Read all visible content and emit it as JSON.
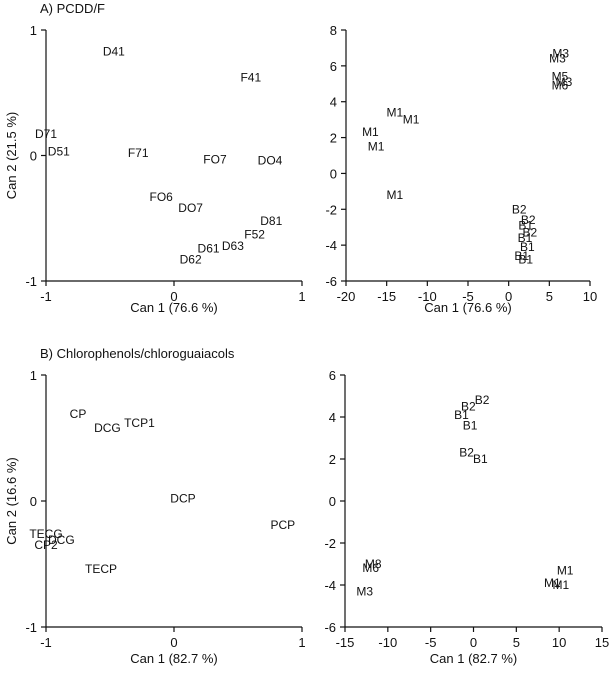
{
  "chart_data": [
    {
      "type": "scatter",
      "title": "A) PCDD/F",
      "xlabel": "Can 1 (76.6 %)",
      "ylabel": "Can 2 (21.5 %)",
      "xlim": [
        -1,
        1
      ],
      "ylim": [
        -1,
        1
      ],
      "xticks": [
        -1,
        0,
        1
      ],
      "yticks": [
        -1,
        0,
        1
      ],
      "tick_labels_x": [
        "-1",
        "0",
        "1"
      ],
      "tick_labels_y": [
        "-1",
        "0",
        "1"
      ],
      "grid": false,
      "points": [
        {
          "label": "D41",
          "x": -0.47,
          "y": 0.83
        },
        {
          "label": "F41",
          "x": 0.6,
          "y": 0.62
        },
        {
          "label": "D71",
          "x": -1.0,
          "y": 0.17
        },
        {
          "label": "D51",
          "x": -0.9,
          "y": 0.03
        },
        {
          "label": "F71",
          "x": -0.28,
          "y": 0.02
        },
        {
          "label": "FO7",
          "x": 0.32,
          "y": -0.03
        },
        {
          "label": "DO4",
          "x": 0.75,
          "y": -0.04
        },
        {
          "label": "FO6",
          "x": -0.1,
          "y": -0.33
        },
        {
          "label": "DO7",
          "x": 0.13,
          "y": -0.42
        },
        {
          "label": "D81",
          "x": 0.76,
          "y": -0.52
        },
        {
          "label": "F52",
          "x": 0.63,
          "y": -0.63
        },
        {
          "label": "D61",
          "x": 0.27,
          "y": -0.74
        },
        {
          "label": "D63",
          "x": 0.46,
          "y": -0.72
        },
        {
          "label": "D62",
          "x": 0.13,
          "y": -0.83
        }
      ]
    },
    {
      "type": "scatter",
      "title": "",
      "xlabel": "Can 1 (76.6 %)",
      "ylabel": "",
      "xlim": [
        -20,
        10
      ],
      "ylim": [
        -6,
        8
      ],
      "xticks": [
        -20,
        -15,
        -10,
        -5,
        0,
        5,
        10
      ],
      "yticks": [
        -6,
        -4,
        -2,
        0,
        2,
        4,
        6,
        8
      ],
      "tick_labels_x": [
        "-20",
        "-15",
        "-10",
        "-5",
        "0",
        "5",
        "10"
      ],
      "tick_labels_y": [
        "-6",
        "-4",
        "-2",
        "0",
        "2",
        "4",
        "6",
        "8"
      ],
      "grid": false,
      "points": [
        {
          "label": "M3",
          "x": 6.4,
          "y": 6.7
        },
        {
          "label": "M3",
          "x": 6.0,
          "y": 6.4
        },
        {
          "label": "M5",
          "x": 6.3,
          "y": 5.4
        },
        {
          "label": "M3",
          "x": 6.8,
          "y": 5.1
        },
        {
          "label": "M6",
          "x": 6.3,
          "y": 4.9
        },
        {
          "label": "M1",
          "x": -14.0,
          "y": 3.4
        },
        {
          "label": "M1",
          "x": -12.0,
          "y": 3.0
        },
        {
          "label": "M1",
          "x": -17.0,
          "y": 2.3
        },
        {
          "label": "M1",
          "x": -16.3,
          "y": 1.5
        },
        {
          "label": "M1",
          "x": -14.0,
          "y": -1.2
        },
        {
          "label": "B2",
          "x": 1.3,
          "y": -2.0
        },
        {
          "label": "B2",
          "x": 2.4,
          "y": -2.6
        },
        {
          "label": "B1",
          "x": 2.1,
          "y": -2.9
        },
        {
          "label": "B2",
          "x": 2.6,
          "y": -3.3
        },
        {
          "label": "B1",
          "x": 2.0,
          "y": -3.6
        },
        {
          "label": "B1",
          "x": 2.3,
          "y": -4.1
        },
        {
          "label": "B1",
          "x": 1.6,
          "y": -4.6
        },
        {
          "label": "B1",
          "x": 2.1,
          "y": -4.8
        }
      ]
    },
    {
      "type": "scatter",
      "title": "B) Chlorophenols/chloroguaiacols",
      "xlabel": "Can 1 (82.7 %)",
      "ylabel": "Can 2 (16.6 %)",
      "xlim": [
        -1,
        1
      ],
      "ylim": [
        -1,
        1
      ],
      "xticks": [
        -1,
        0,
        1
      ],
      "yticks": [
        -1,
        0,
        1
      ],
      "tick_labels_x": [
        "-1",
        "0",
        "1"
      ],
      "tick_labels_y": [
        "-1",
        "0",
        "1"
      ],
      "grid": false,
      "points": [
        {
          "label": "CP",
          "x": -0.75,
          "y": 0.69
        },
        {
          "label": "TCP1",
          "x": -0.27,
          "y": 0.62
        },
        {
          "label": "DCG",
          "x": -0.52,
          "y": 0.58
        },
        {
          "label": "DCP",
          "x": 0.07,
          "y": 0.02
        },
        {
          "label": "PCP",
          "x": 0.85,
          "y": -0.19
        },
        {
          "label": "TECG",
          "x": -1.0,
          "y": -0.26
        },
        {
          "label": "DCG",
          "x": -0.88,
          "y": -0.31
        },
        {
          "label": "CP2",
          "x": -1.0,
          "y": -0.35
        },
        {
          "label": "TECP",
          "x": -0.57,
          "y": -0.54
        }
      ]
    },
    {
      "type": "scatter",
      "title": "",
      "xlabel": "Can 1 (82.7 %)",
      "ylabel": "",
      "xlim": [
        -15,
        15
      ],
      "ylim": [
        -6,
        6
      ],
      "xticks": [
        -15,
        -10,
        -5,
        0,
        5,
        10,
        15
      ],
      "yticks": [
        -6,
        -4,
        -2,
        0,
        2,
        4,
        6
      ],
      "tick_labels_x": [
        "-15",
        "-10",
        "-5",
        "0",
        "5",
        "10",
        "15"
      ],
      "tick_labels_y": [
        "-6",
        "-4",
        "-2",
        "0",
        "2",
        "4",
        "6"
      ],
      "grid": false,
      "points": [
        {
          "label": "B2",
          "x": 1.0,
          "y": 4.8
        },
        {
          "label": "B2",
          "x": -0.6,
          "y": 4.5
        },
        {
          "label": "B1",
          "x": -1.4,
          "y": 4.1
        },
        {
          "label": "B1",
          "x": -0.4,
          "y": 3.6
        },
        {
          "label": "B2",
          "x": -0.8,
          "y": 2.3
        },
        {
          "label": "B1",
          "x": 0.8,
          "y": 2.0
        },
        {
          "label": "M8",
          "x": -11.7,
          "y": -3.0
        },
        {
          "label": "M6",
          "x": -12.0,
          "y": -3.2
        },
        {
          "label": "M3",
          "x": -12.7,
          "y": -4.3
        },
        {
          "label": "M1",
          "x": 10.7,
          "y": -3.3
        },
        {
          "label": "M1",
          "x": 9.2,
          "y": -3.9
        },
        {
          "label": "M1",
          "x": 10.2,
          "y": -4.0
        }
      ]
    }
  ]
}
